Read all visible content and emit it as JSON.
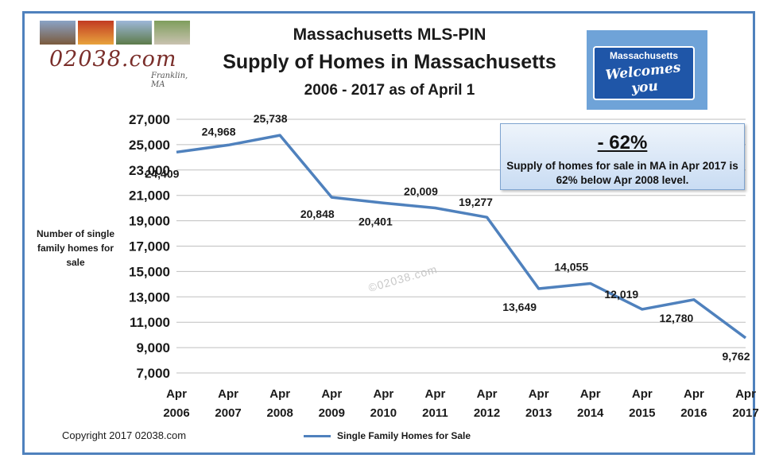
{
  "header": {
    "line1": "Massachusetts MLS-PIN",
    "line2": "Supply of Homes in Massachusetts",
    "line3": "2006 - 2017 as of April 1"
  },
  "logo": {
    "text": "02038.com",
    "sub": "Franklin, MA"
  },
  "sign": {
    "line1": "Massachusetts",
    "line2": "Welcomes you"
  },
  "callout": {
    "big": "- 62%",
    "text": "Supply of homes for sale in MA in Apr 2017 is 62% below Apr 2008 level."
  },
  "watermark": "©02038.com",
  "copyright": "Copyright 2017 02038.com",
  "colors": {
    "series": "#4f81bd",
    "grid": "#bfbfbf",
    "border": "#4f81bd"
  },
  "chart_data": {
    "type": "line",
    "title": "Supply of Homes in Massachusetts",
    "ylabel": "Number of single family homes for sale",
    "xlabel": "",
    "categories": [
      "Apr 2006",
      "Apr 2007",
      "Apr 2008",
      "Apr 2009",
      "Apr 2010",
      "Apr 2011",
      "Apr 2012",
      "Apr 2013",
      "Apr 2014",
      "Apr 2015",
      "Apr 2016",
      "Apr 2017"
    ],
    "series": [
      {
        "name": "Single Family Homes for Sale",
        "values": [
          24409,
          24968,
          25738,
          20848,
          20401,
          20009,
          19277,
          13649,
          14055,
          12019,
          12780,
          9762
        ],
        "labels": [
          "24,409",
          "24,968",
          "25,738",
          "20,848",
          "20,401",
          "20,009",
          "19,277",
          "13,649",
          "14,055",
          "12,019",
          "12,780",
          "9,762"
        ]
      }
    ],
    "ylim": [
      7000,
      27000
    ],
    "yticks": [
      7000,
      9000,
      11000,
      13000,
      15000,
      17000,
      19000,
      21000,
      23000,
      25000,
      27000
    ],
    "ytick_labels": [
      "7,000",
      "9,000",
      "11,000",
      "13,000",
      "15,000",
      "17,000",
      "19,000",
      "21,000",
      "23,000",
      "25,000",
      "27,000"
    ],
    "grid": true,
    "legend": "bottom-center"
  }
}
